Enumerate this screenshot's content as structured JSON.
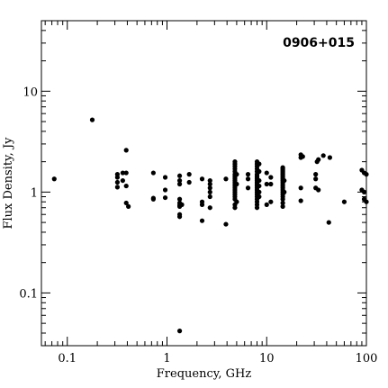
{
  "chart_data": {
    "type": "scatter",
    "title": "",
    "annotation": "0906+015",
    "xlabel": "Frequency, GHz",
    "ylabel": "Flux Density, Jy",
    "xscale": "log",
    "yscale": "log",
    "xlim": [
      0.055,
      100
    ],
    "ylim": [
      0.03,
      50
    ],
    "grid": false,
    "legend": "none",
    "x_ticks": [
      {
        "value": 0.1,
        "label": "0.1"
      },
      {
        "value": 1,
        "label": "1"
      },
      {
        "value": 10,
        "label": "10"
      },
      {
        "value": 100,
        "label": "100"
      }
    ],
    "y_ticks": [
      {
        "value": 0.1,
        "label": "0.1"
      },
      {
        "value": 1,
        "label": "1"
      },
      {
        "value": 10,
        "label": "10"
      }
    ],
    "series": [
      {
        "color": "#000000",
        "points": [
          [
            0.074,
            1.35
          ],
          [
            0.178,
            5.2
          ],
          [
            0.318,
            1.5
          ],
          [
            0.318,
            1.4
          ],
          [
            0.318,
            1.25
          ],
          [
            0.318,
            1.12
          ],
          [
            0.36,
            1.55
          ],
          [
            0.36,
            1.3
          ],
          [
            0.39,
            2.6
          ],
          [
            0.39,
            1.55
          ],
          [
            0.39,
            1.15
          ],
          [
            0.39,
            0.78
          ],
          [
            0.41,
            0.72
          ],
          [
            0.73,
            1.55
          ],
          [
            0.73,
            0.87
          ],
          [
            0.73,
            0.85
          ],
          [
            0.96,
            1.4
          ],
          [
            0.96,
            1.05
          ],
          [
            0.96,
            0.88
          ],
          [
            1.34,
            1.45
          ],
          [
            1.34,
            1.3
          ],
          [
            1.34,
            1.2
          ],
          [
            1.34,
            0.85
          ],
          [
            1.34,
            0.78
          ],
          [
            1.34,
            0.74
          ],
          [
            1.34,
            0.72
          ],
          [
            1.34,
            0.6
          ],
          [
            1.34,
            0.57
          ],
          [
            1.34,
            0.042
          ],
          [
            1.41,
            0.75
          ],
          [
            1.67,
            1.5
          ],
          [
            1.67,
            1.25
          ],
          [
            2.25,
            1.35
          ],
          [
            2.25,
            0.8
          ],
          [
            2.25,
            0.75
          ],
          [
            2.25,
            0.52
          ],
          [
            2.7,
            1.3
          ],
          [
            2.7,
            1.2
          ],
          [
            2.7,
            1.1
          ],
          [
            2.7,
            1.0
          ],
          [
            2.7,
            0.9
          ],
          [
            2.7,
            0.7
          ],
          [
            3.9,
            1.35
          ],
          [
            3.9,
            0.48
          ],
          [
            4.8,
            2.0
          ],
          [
            4.8,
            1.9
          ],
          [
            4.8,
            1.8
          ],
          [
            4.8,
            1.7
          ],
          [
            4.8,
            1.6
          ],
          [
            4.8,
            1.5
          ],
          [
            4.8,
            1.45
          ],
          [
            4.8,
            1.4
          ],
          [
            4.8,
            1.35
          ],
          [
            4.8,
            1.3
          ],
          [
            4.8,
            1.25
          ],
          [
            4.8,
            1.2
          ],
          [
            4.8,
            1.15
          ],
          [
            4.8,
            1.1
          ],
          [
            4.8,
            1.05
          ],
          [
            4.8,
            1.0
          ],
          [
            4.8,
            0.95
          ],
          [
            4.8,
            0.9
          ],
          [
            4.8,
            0.85
          ],
          [
            4.8,
            0.75
          ],
          [
            4.8,
            0.7
          ],
          [
            5.0,
            1.5
          ],
          [
            5.0,
            1.2
          ],
          [
            5.0,
            0.8
          ],
          [
            6.5,
            1.5
          ],
          [
            6.5,
            1.35
          ],
          [
            6.5,
            1.1
          ],
          [
            8.0,
            2.0
          ],
          [
            8.0,
            1.9
          ],
          [
            8.0,
            1.8
          ],
          [
            8.0,
            1.7
          ],
          [
            8.0,
            1.6
          ],
          [
            8.0,
            1.5
          ],
          [
            8.0,
            1.45
          ],
          [
            8.0,
            1.4
          ],
          [
            8.0,
            1.35
          ],
          [
            8.0,
            1.3
          ],
          [
            8.0,
            1.25
          ],
          [
            8.0,
            1.2
          ],
          [
            8.0,
            1.15
          ],
          [
            8.0,
            1.1
          ],
          [
            8.0,
            1.05
          ],
          [
            8.0,
            1.0
          ],
          [
            8.0,
            0.95
          ],
          [
            8.0,
            0.9
          ],
          [
            8.0,
            0.85
          ],
          [
            8.0,
            0.8
          ],
          [
            8.0,
            0.75
          ],
          [
            8.0,
            0.7
          ],
          [
            8.4,
            1.9
          ],
          [
            8.4,
            1.6
          ],
          [
            8.4,
            1.3
          ],
          [
            8.4,
            1.15
          ],
          [
            8.4,
            1.0
          ],
          [
            8.4,
            0.9
          ],
          [
            10.0,
            1.55
          ],
          [
            10.0,
            1.2
          ],
          [
            10.0,
            0.75
          ],
          [
            11.0,
            1.4
          ],
          [
            11.0,
            1.2
          ],
          [
            11.0,
            0.8
          ],
          [
            14.5,
            1.75
          ],
          [
            14.5,
            1.7
          ],
          [
            14.5,
            1.65
          ],
          [
            14.5,
            1.6
          ],
          [
            14.5,
            1.55
          ],
          [
            14.5,
            1.5
          ],
          [
            14.5,
            1.45
          ],
          [
            14.5,
            1.4
          ],
          [
            14.5,
            1.35
          ],
          [
            14.5,
            1.3
          ],
          [
            14.5,
            1.25
          ],
          [
            14.5,
            1.2
          ],
          [
            14.5,
            1.15
          ],
          [
            14.5,
            1.1
          ],
          [
            14.5,
            1.05
          ],
          [
            14.5,
            1.0
          ],
          [
            14.5,
            0.95
          ],
          [
            14.5,
            0.9
          ],
          [
            14.5,
            0.85
          ],
          [
            14.5,
            0.78
          ],
          [
            14.5,
            0.72
          ],
          [
            15.0,
            1.3
          ],
          [
            15.0,
            1.0
          ],
          [
            22.0,
            2.35
          ],
          [
            22.0,
            2.2
          ],
          [
            22.0,
            1.1
          ],
          [
            22.0,
            0.82
          ],
          [
            23.0,
            2.25
          ],
          [
            31.0,
            1.5
          ],
          [
            31.0,
            1.35
          ],
          [
            31.0,
            1.1
          ],
          [
            32.0,
            2.0
          ],
          [
            33.0,
            2.1
          ],
          [
            33.0,
            1.05
          ],
          [
            37.0,
            2.3
          ],
          [
            42.0,
            0.5
          ],
          [
            43.0,
            2.2
          ],
          [
            60.0,
            0.8
          ],
          [
            90.0,
            1.65
          ],
          [
            90.0,
            1.05
          ],
          [
            95.0,
            1.55
          ],
          [
            95.0,
            1.0
          ],
          [
            95.0,
            0.85
          ],
          [
            100.0,
            1.5
          ],
          [
            100.0,
            0.8
          ]
        ]
      }
    ]
  }
}
